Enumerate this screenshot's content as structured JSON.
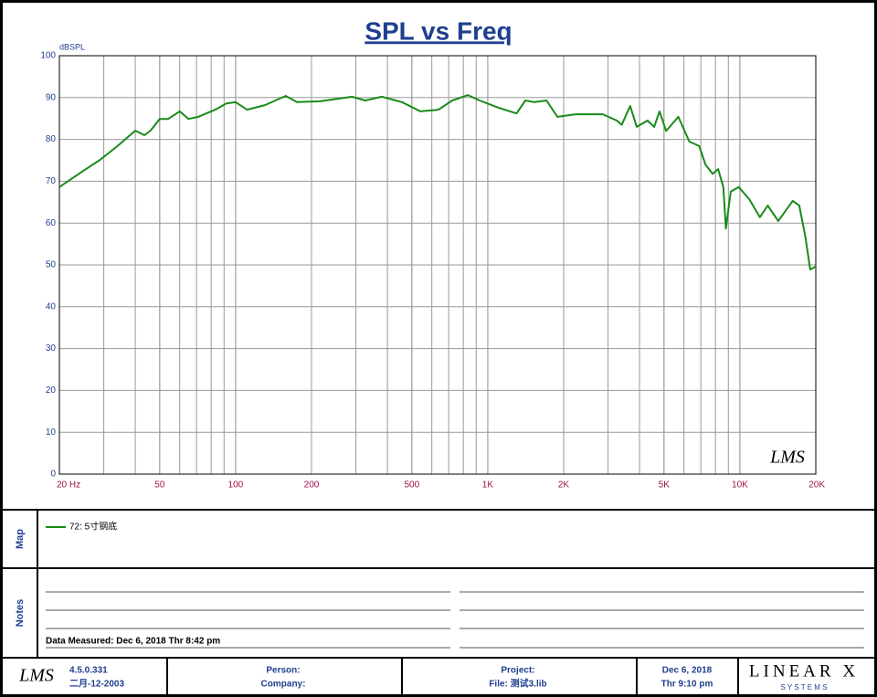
{
  "chart_data": {
    "type": "line",
    "title": "SPL vs Freq",
    "y_label": "dBSPL",
    "x": [
      20,
      24.6,
      29,
      34,
      40,
      43.5,
      46,
      50,
      54,
      60,
      65,
      71,
      83,
      92,
      100,
      111,
      131,
      158,
      175,
      216,
      289,
      327,
      380,
      457,
      540,
      638,
      723,
      834,
      929,
      1100,
      1300,
      1410,
      1530,
      1710,
      1890,
      2230,
      2860,
      3250,
      3400,
      3670,
      3900,
      4300,
      4570,
      4800,
      5100,
      5700,
      6300,
      6900,
      7300,
      7800,
      8200,
      8600,
      8800,
      9200,
      9900,
      10900,
      12000,
      12900,
      14200,
      16200,
      17200,
      18200,
      19000,
      20000
    ],
    "series": [
      {
        "name": "72: 5寸钢底",
        "color": "#1a8a1a",
        "values": [
          68.6,
          72.3,
          75.1,
          78.4,
          82.1,
          81,
          82.1,
          84.9,
          84.9,
          86.7,
          84.9,
          85.4,
          87.1,
          88.6,
          88.9,
          87.1,
          88.2,
          90.4,
          88.9,
          89.1,
          90.2,
          89.3,
          90.2,
          88.9,
          86.7,
          87.1,
          89.3,
          90.6,
          89.3,
          87.6,
          86.2,
          89.3,
          88.9,
          89.3,
          85.4,
          86,
          86,
          84.5,
          83.5,
          88,
          83,
          84.5,
          83,
          86.7,
          82,
          85.4,
          79.5,
          78.4,
          74,
          71.8,
          72.9,
          68.6,
          58.7,
          67.5,
          68.6,
          65.7,
          61.4,
          64.2,
          60.5,
          65.3,
          64.2,
          56.6,
          48.9,
          49.6
        ]
      }
    ],
    "xlim": [
      20,
      20000
    ],
    "ylim": [
      0,
      100
    ],
    "log_x": true,
    "grid": true,
    "xticks": [
      {
        "value": 20,
        "label": "20  Hz"
      },
      50,
      100,
      200,
      500,
      {
        "value": 1000,
        "label": "1K"
      },
      {
        "value": 2000,
        "label": "2K"
      },
      {
        "value": 5000,
        "label": "5K"
      },
      {
        "value": 10000,
        "label": "10K"
      },
      {
        "value": 20000,
        "label": "20K"
      }
    ],
    "yticks": [
      0,
      10,
      20,
      30,
      40,
      50,
      60,
      70,
      80,
      90,
      100
    ]
  },
  "ui": {
    "logo": "LMS",
    "map_label": "Map",
    "notes_label": "Notes",
    "data_measured": "Data Measured: Dec  6, 2018  Thr  8:42 pm",
    "version": "4.5.0.331",
    "version_date": "二月-12-2003",
    "person": "Person:",
    "company": "Company:",
    "project": "Project:",
    "file": "File: 测试3.lib",
    "date": "Dec  6, 2018",
    "time": "Thr  9:10 pm",
    "brand": "LINEAR X",
    "brand_sub": "S Y S T E M S"
  }
}
